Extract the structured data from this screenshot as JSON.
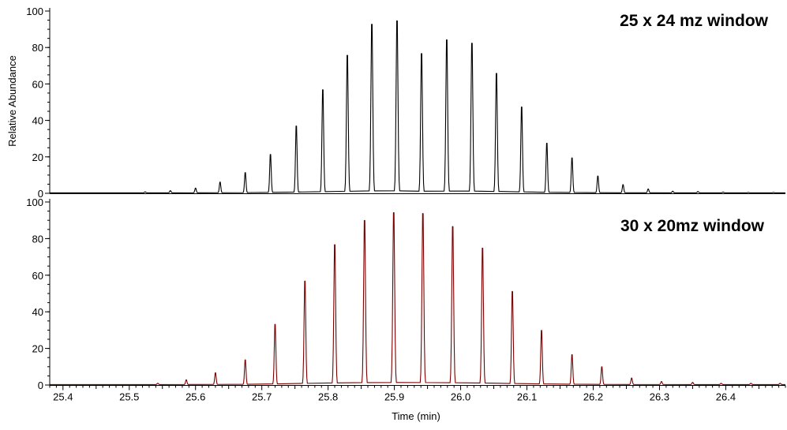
{
  "chart_data": {
    "type": "line",
    "xlabel": "Time (min)",
    "ylabel": "Relative Abundance",
    "xlim": [
      25.38,
      26.49
    ],
    "x_ticks": [
      25.4,
      25.5,
      25.6,
      25.7,
      25.8,
      25.9,
      26.0,
      26.1,
      26.2,
      26.3,
      26.4
    ],
    "x_tick_labels": [
      "25.4",
      "25.5",
      "25.6",
      "25.7",
      "25.8",
      "25.9",
      "26.0",
      "26.1",
      "26.2",
      "26.3",
      "26.4"
    ],
    "panels": [
      {
        "title": "25 x 24 mz window",
        "color": "#000000",
        "ylim": [
          0,
          100
        ],
        "y_ticks": [
          0,
          20,
          40,
          60,
          80,
          100
        ],
        "y_tick_labels": [
          "0",
          "20",
          "40",
          "60",
          "80",
          "100"
        ],
        "peaks": [
          {
            "x": 25.524,
            "y": 0.8
          },
          {
            "x": 25.562,
            "y": 1.5
          },
          {
            "x": 25.6,
            "y": 3
          },
          {
            "x": 25.637,
            "y": 6.5
          },
          {
            "x": 25.675,
            "y": 12
          },
          {
            "x": 25.713,
            "y": 22.5
          },
          {
            "x": 25.752,
            "y": 39
          },
          {
            "x": 25.792,
            "y": 60
          },
          {
            "x": 25.829,
            "y": 80
          },
          {
            "x": 25.866,
            "y": 98
          },
          {
            "x": 25.904,
            "y": 100
          },
          {
            "x": 25.941,
            "y": 81
          },
          {
            "x": 25.979,
            "y": 89
          },
          {
            "x": 26.017,
            "y": 87
          },
          {
            "x": 26.054,
            "y": 69.5
          },
          {
            "x": 26.092,
            "y": 50
          },
          {
            "x": 26.13,
            "y": 29
          },
          {
            "x": 26.168,
            "y": 20.5
          },
          {
            "x": 26.207,
            "y": 10
          },
          {
            "x": 26.245,
            "y": 5
          },
          {
            "x": 26.283,
            "y": 2.5
          },
          {
            "x": 26.32,
            "y": 1.2
          },
          {
            "x": 26.358,
            "y": 1
          },
          {
            "x": 26.396,
            "y": 0.7
          },
          {
            "x": 26.434,
            "y": 0.5
          },
          {
            "x": 26.472,
            "y": 0.5
          }
        ]
      },
      {
        "title": "30 x 20mz window",
        "color": "#7b0000",
        "ylim": [
          0,
          100
        ],
        "y_ticks": [
          0,
          20,
          40,
          60,
          80,
          100
        ],
        "y_tick_labels": [
          "0",
          "20",
          "40",
          "60",
          "80",
          "100"
        ],
        "peaks": [
          {
            "x": 25.543,
            "y": 1
          },
          {
            "x": 25.586,
            "y": 3
          },
          {
            "x": 25.63,
            "y": 7
          },
          {
            "x": 25.675,
            "y": 14.5
          },
          {
            "x": 25.72,
            "y": 35
          },
          {
            "x": 25.765,
            "y": 60
          },
          {
            "x": 25.81,
            "y": 81
          },
          {
            "x": 25.855,
            "y": 95
          },
          {
            "x": 25.899,
            "y": 99.5
          },
          {
            "x": 25.943,
            "y": 99
          },
          {
            "x": 25.988,
            "y": 91.5
          },
          {
            "x": 26.033,
            "y": 79
          },
          {
            "x": 26.078,
            "y": 54
          },
          {
            "x": 26.122,
            "y": 31.5
          },
          {
            "x": 26.168,
            "y": 17.5
          },
          {
            "x": 26.213,
            "y": 10.5
          },
          {
            "x": 26.258,
            "y": 4
          },
          {
            "x": 26.303,
            "y": 2
          },
          {
            "x": 26.35,
            "y": 1.5
          },
          {
            "x": 26.393,
            "y": 1
          },
          {
            "x": 26.438,
            "y": 1
          },
          {
            "x": 26.482,
            "y": 1
          }
        ]
      }
    ]
  }
}
